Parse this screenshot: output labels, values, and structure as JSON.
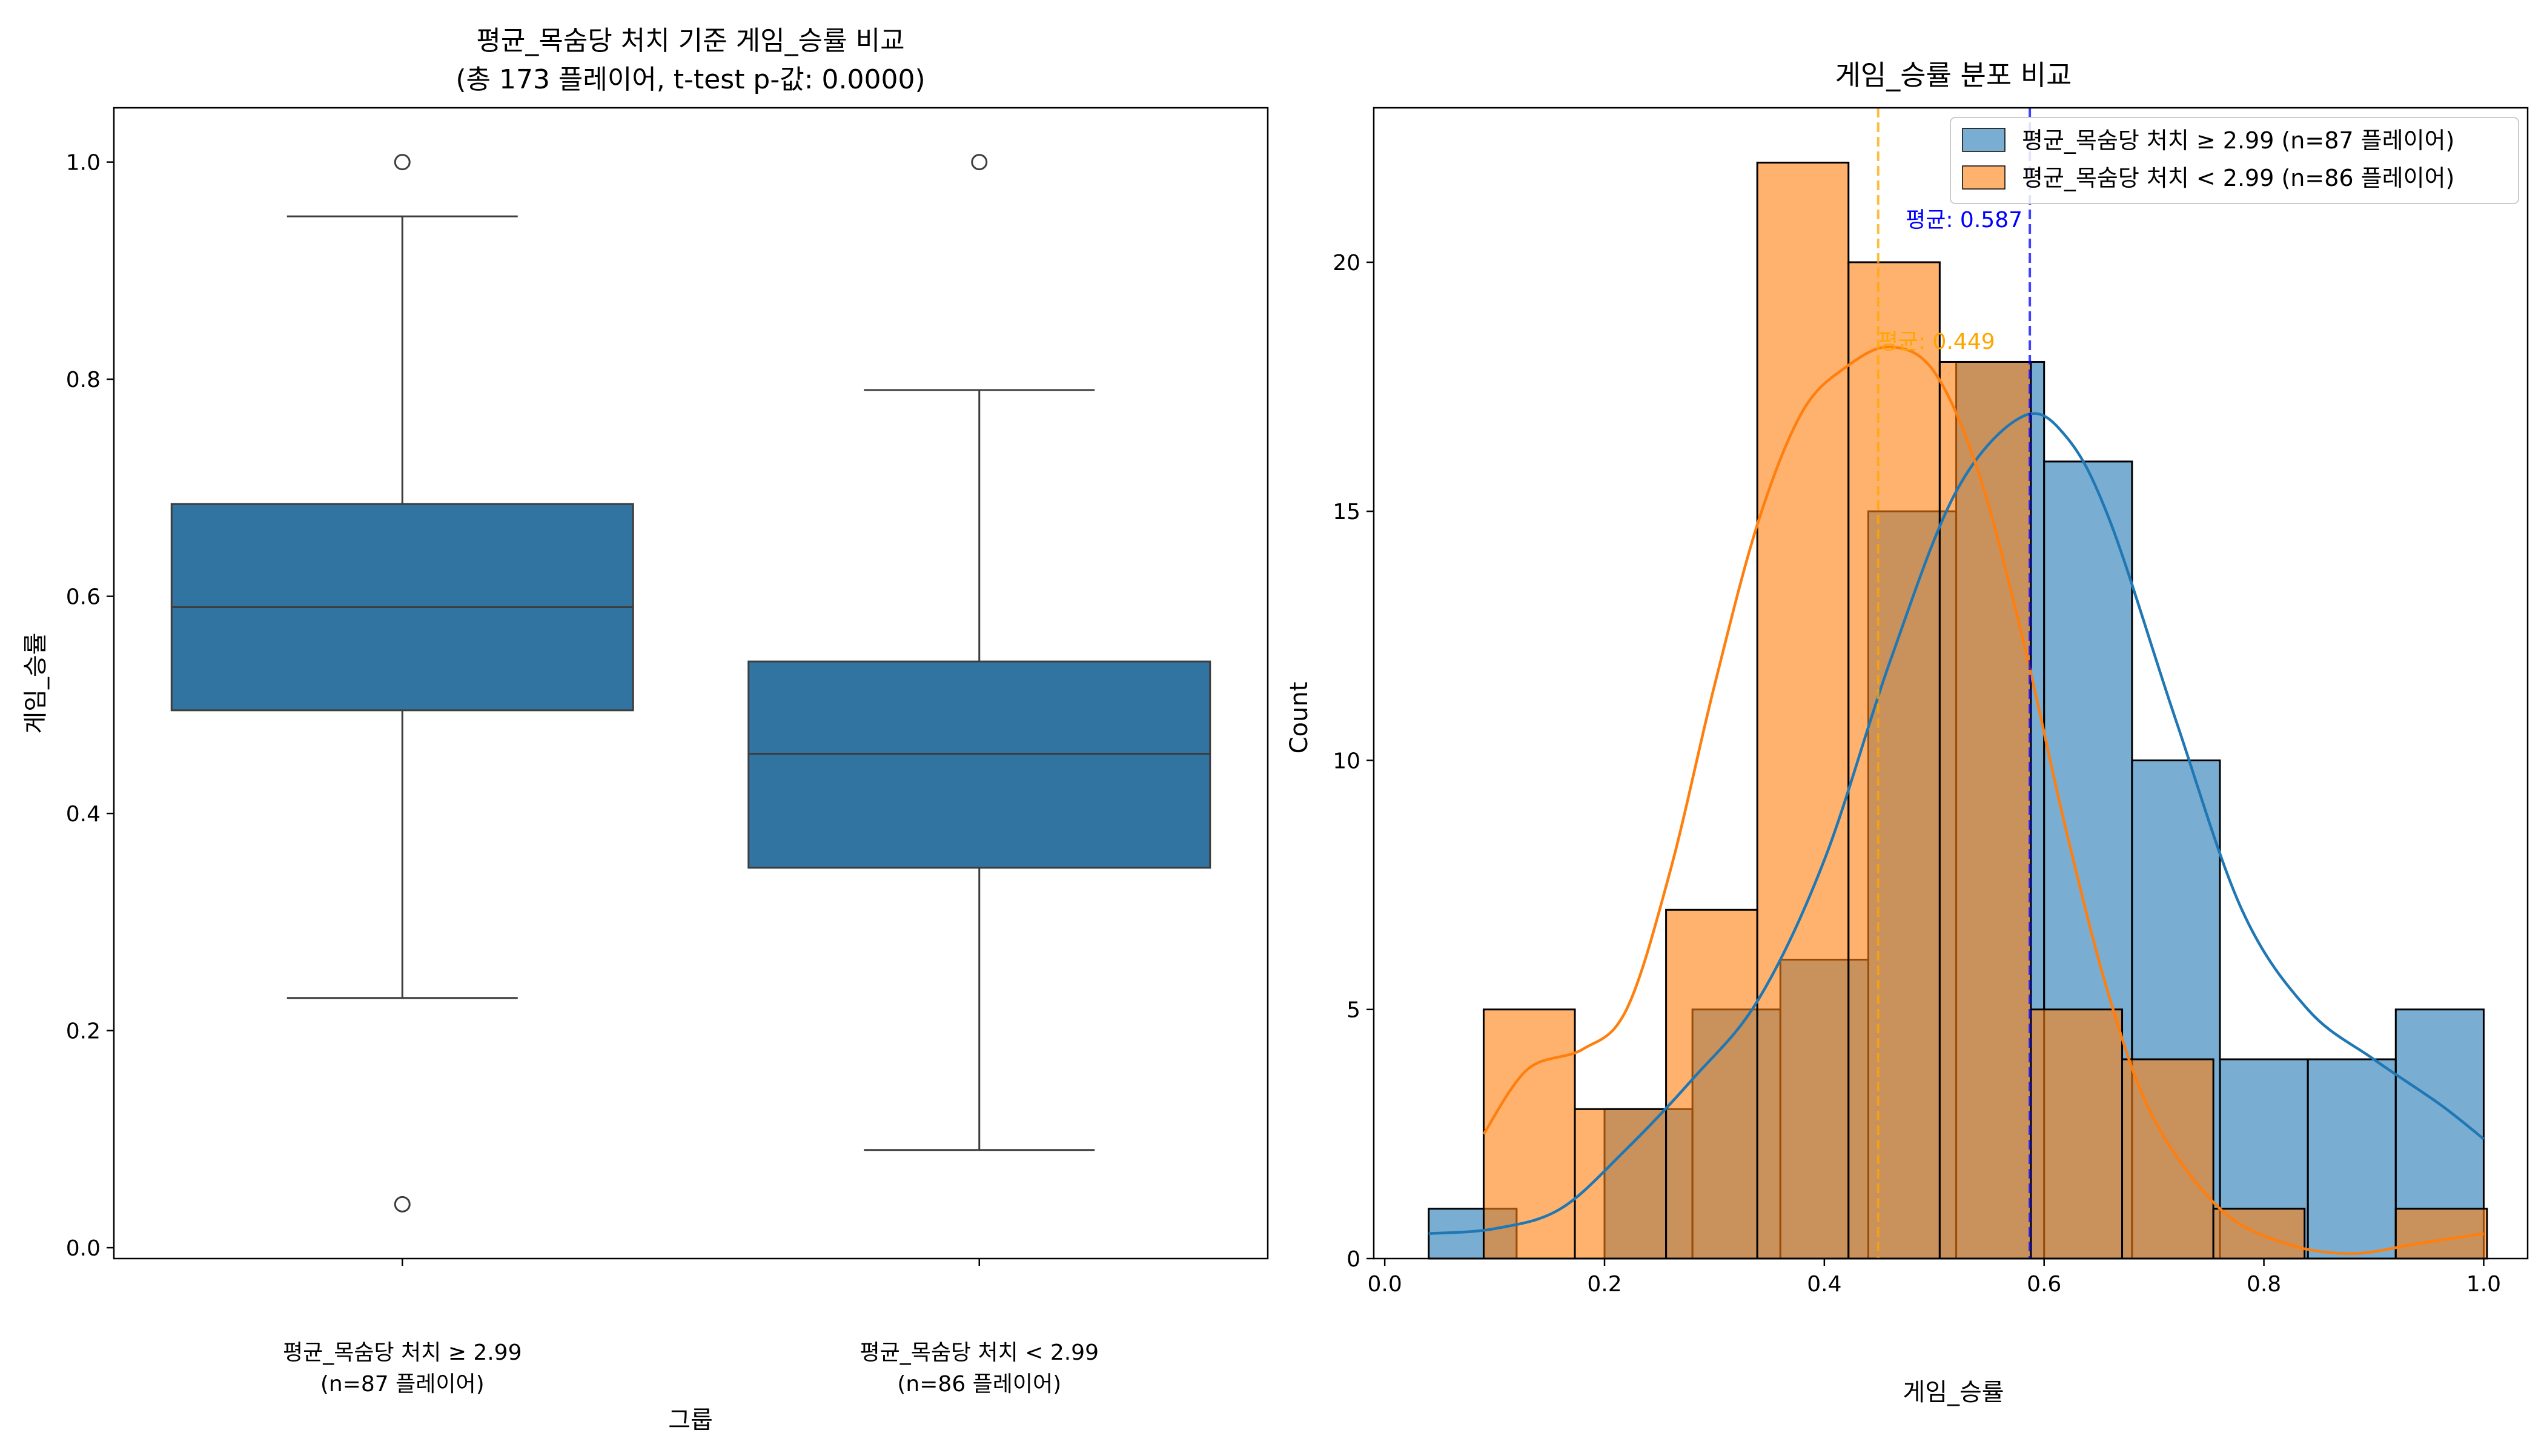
{
  "chart_data": [
    {
      "type": "box",
      "title_line1": "평균_목숨당 처치 기준 게임_승률 비교",
      "title_line2": "(총 173 플레이어, t-test p-값: 0.0000)",
      "xlabel": "그룹",
      "ylabel": "게임_승률",
      "ylim": [
        -0.01,
        1.05
      ],
      "yticks": [
        0.0,
        0.2,
        0.4,
        0.6,
        0.8,
        1.0
      ],
      "ytick_labels": [
        "0.0",
        "0.2",
        "0.4",
        "0.6",
        "0.8",
        "1.0"
      ],
      "box_color": "#3274a1",
      "groups": [
        {
          "label_line1": "평균_목숨당 처치 ≥ 2.99",
          "label_line2": "(n=87 플레이어)",
          "whisker_low": 0.23,
          "q1": 0.495,
          "median": 0.59,
          "q3": 0.685,
          "whisker_high": 0.95,
          "outliers": [
            1.0,
            0.04
          ]
        },
        {
          "label_line1": "평균_목숨당 처치 < 2.99",
          "label_line2": "(n=86 플레이어)",
          "whisker_low": 0.09,
          "q1": 0.35,
          "median": 0.455,
          "q3": 0.54,
          "whisker_high": 0.79,
          "outliers": [
            1.0
          ]
        }
      ]
    },
    {
      "type": "histogram",
      "title": "게임_승률 분포 비교",
      "xlabel": "게임_승률",
      "ylabel": "Count",
      "xlim": [
        -0.01,
        1.04
      ],
      "ylim": [
        0,
        23.1
      ],
      "xticks": [
        0.0,
        0.2,
        0.4,
        0.6,
        0.8,
        1.0
      ],
      "xtick_labels": [
        "0.0",
        "0.2",
        "0.4",
        "0.6",
        "0.8",
        "1.0"
      ],
      "yticks": [
        0,
        5,
        10,
        15,
        20
      ],
      "ytick_labels": [
        "0",
        "5",
        "10",
        "15",
        "20"
      ],
      "legend_position": "top-right",
      "series": [
        {
          "name": "평균_목숨당 처치 ≥ 2.99 (n=87 플레이어)",
          "color": "#1f77b4",
          "bin_edges": [
            0.04,
            0.12,
            0.2,
            0.28,
            0.36,
            0.44,
            0.52,
            0.6,
            0.68,
            0.76,
            0.84,
            0.92,
            1.0
          ],
          "counts": [
            1,
            0,
            3,
            5,
            6,
            15,
            18,
            16,
            10,
            4,
            4,
            5
          ],
          "mean": 0.587,
          "mean_label": "평균: 0.587",
          "mean_line_color": "#0000ff",
          "mean_text_color": "#0000ff",
          "kde_x": [
            0.04,
            0.1,
            0.16,
            0.22,
            0.28,
            0.34,
            0.4,
            0.46,
            0.52,
            0.58,
            0.62,
            0.66,
            0.72,
            0.78,
            0.84,
            0.9,
            0.96,
            1.0
          ],
          "kde_y": [
            0.5,
            0.6,
            1.0,
            2.2,
            3.6,
            5.2,
            8.0,
            12.0,
            15.4,
            16.9,
            16.5,
            14.8,
            10.8,
            7.0,
            5.0,
            4.0,
            3.1,
            2.4
          ]
        },
        {
          "name": "평균_목숨당 처치 < 2.99 (n=86 플레이어)",
          "color": "#ff7f0e",
          "bin_edges": [
            0.09,
            0.173,
            0.256,
            0.339,
            0.422,
            0.505,
            0.588,
            0.671,
            0.754,
            0.837,
            0.92,
            1.003
          ],
          "counts": [
            5,
            3,
            7,
            22,
            20,
            18,
            5,
            4,
            1,
            0,
            1
          ],
          "mean": 0.449,
          "mean_label": "평균: 0.449",
          "mean_line_color": "#ffa500",
          "mean_text_color": "#ffa500",
          "kde_x": [
            0.09,
            0.13,
            0.18,
            0.22,
            0.26,
            0.3,
            0.34,
            0.38,
            0.42,
            0.46,
            0.5,
            0.54,
            0.58,
            0.62,
            0.66,
            0.7,
            0.76,
            0.82,
            0.88,
            0.94,
            1.0
          ],
          "kde_y": [
            2.5,
            3.8,
            4.2,
            5.0,
            7.8,
            11.5,
            14.8,
            17.0,
            17.9,
            18.3,
            17.8,
            15.8,
            12.5,
            8.6,
            5.2,
            2.8,
            1.0,
            0.3,
            0.1,
            0.3,
            0.5
          ]
        }
      ]
    }
  ]
}
